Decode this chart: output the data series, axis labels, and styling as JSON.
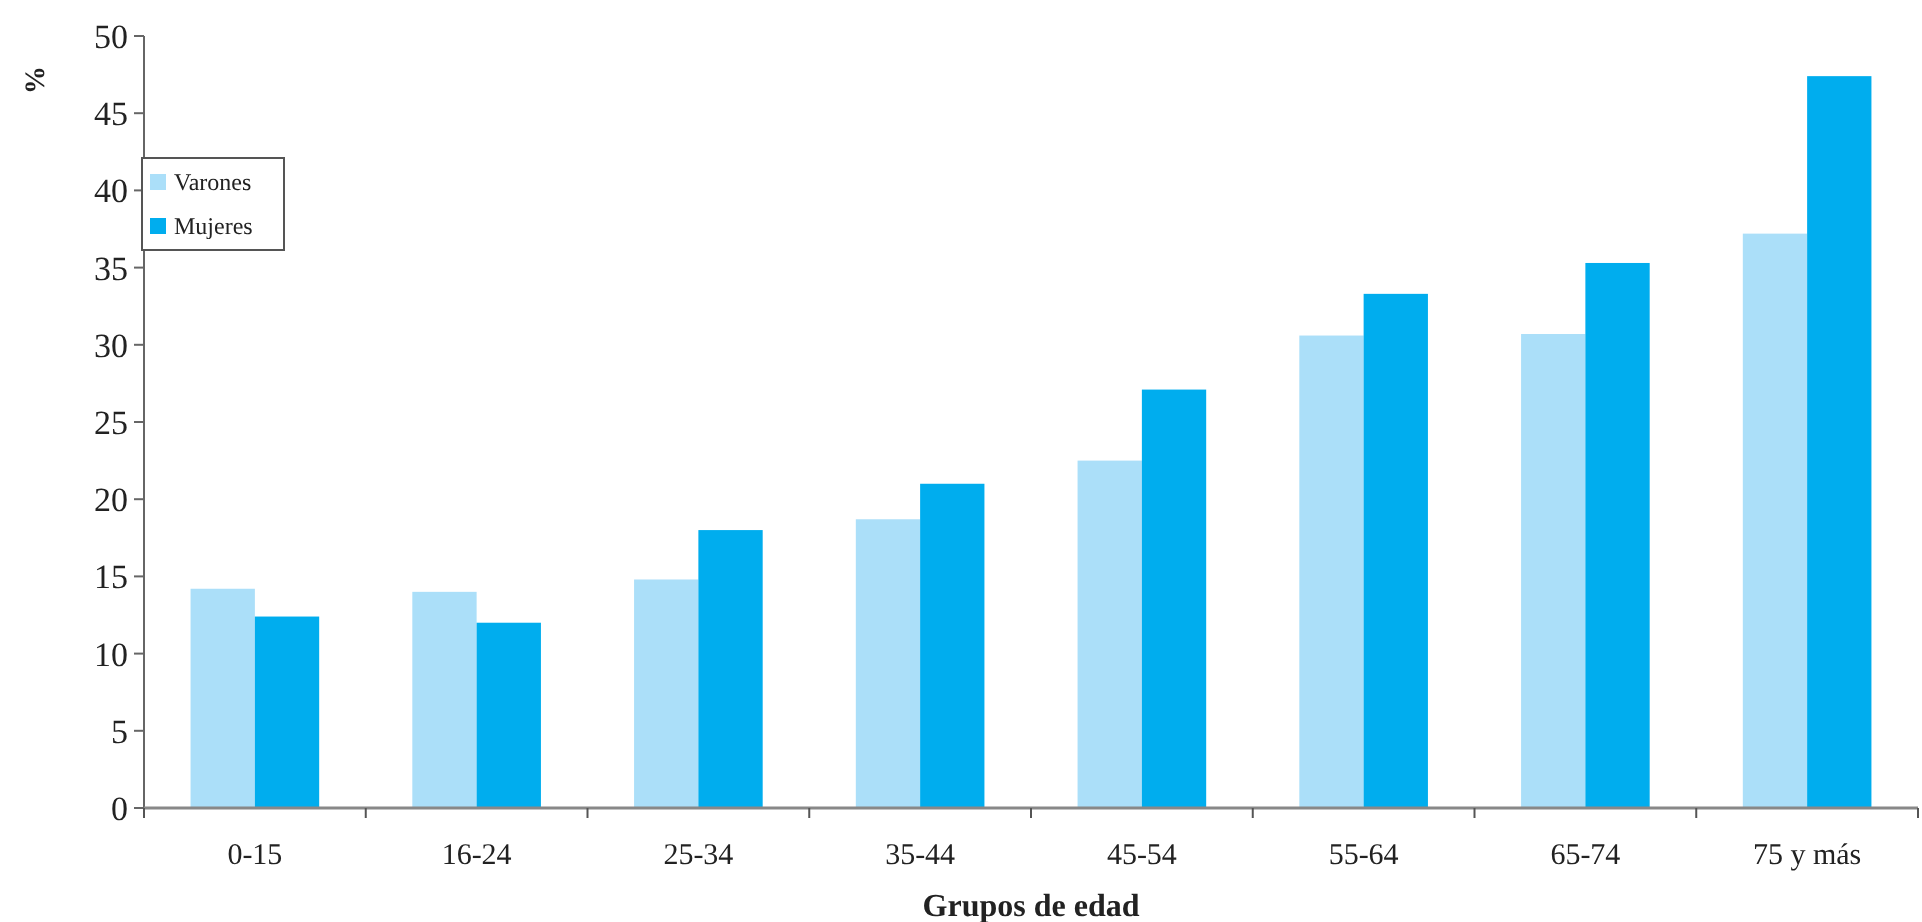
{
  "chart_data": {
    "type": "bar",
    "xlabel": "Grupos de edad",
    "ylabel": "%",
    "categories": [
      "0-15",
      "16-24",
      "25-34",
      "35-44",
      "45-54",
      "55-64",
      "65-74",
      "75 y más"
    ],
    "series": [
      {
        "name": "Varones",
        "color": "#abdff9",
        "values": [
          14.2,
          14.0,
          14.8,
          18.7,
          22.5,
          30.6,
          30.7,
          37.2
        ]
      },
      {
        "name": "Mujeres",
        "color": "#00adee",
        "values": [
          12.4,
          12.0,
          18.0,
          21.0,
          27.1,
          33.3,
          35.3,
          47.4
        ]
      }
    ],
    "ylim": [
      0,
      50
    ],
    "yticks": [
      0,
      5,
      10,
      15,
      20,
      25,
      30,
      35,
      40,
      45,
      50
    ],
    "legend": "top left",
    "grid": false
  }
}
